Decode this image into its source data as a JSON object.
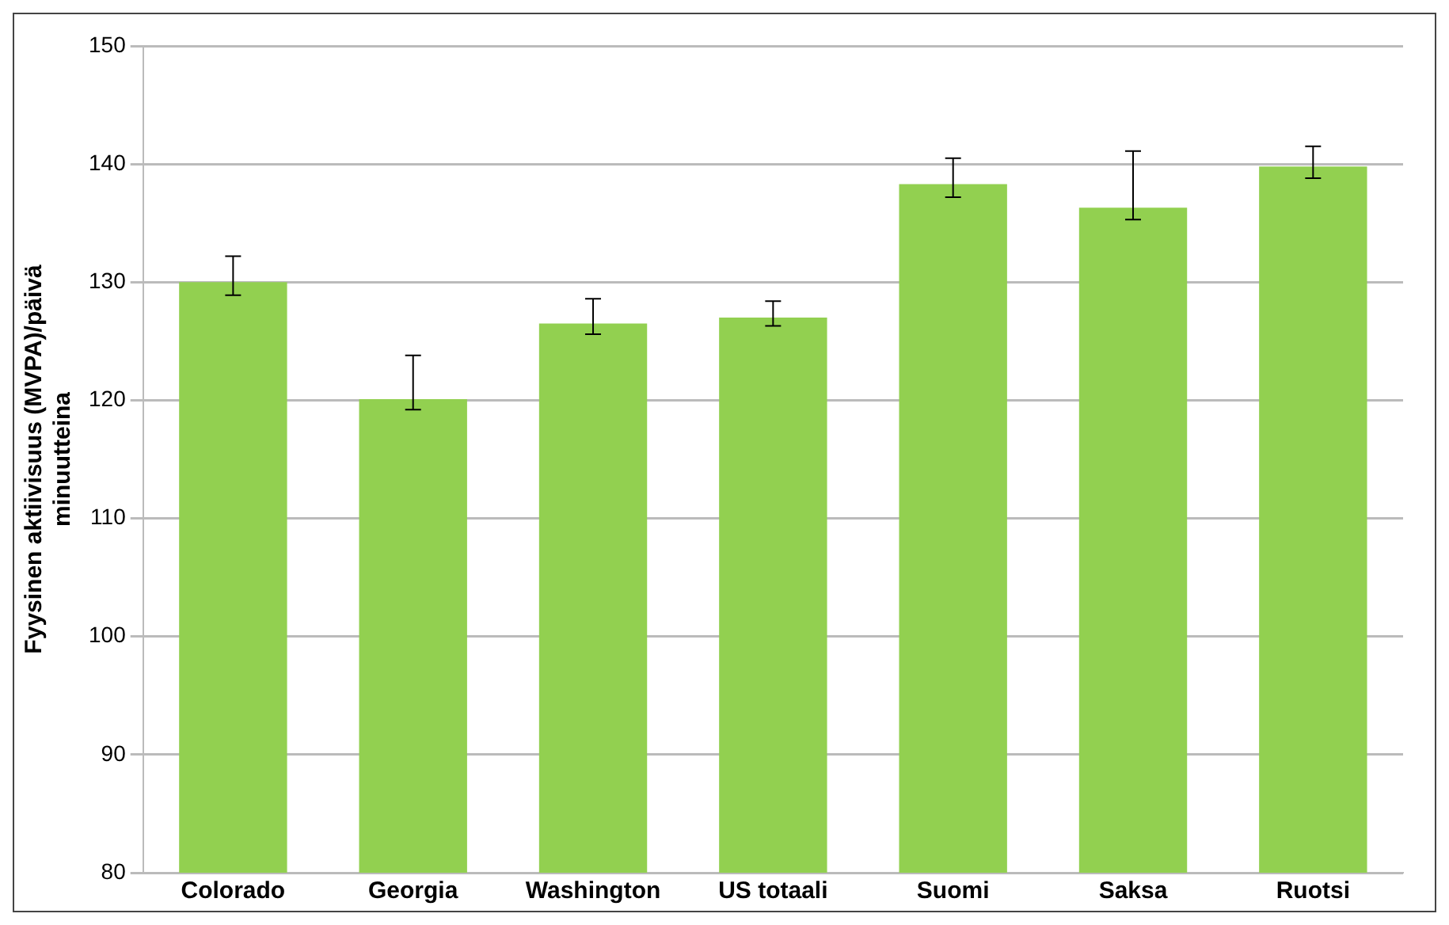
{
  "chart_data": {
    "type": "bar",
    "ylabel": "Fyysinen aktiivisuus (MVPA)/päivä minuutteina",
    "categories": [
      "Colorado",
      "Georgia",
      "Washington",
      "US totaali",
      "Suomi",
      "Saksa",
      "Ruotsi"
    ],
    "values": [
      130,
      120.1,
      126.5,
      127,
      138.3,
      136.3,
      139.8
    ],
    "errors": [
      [
        128.9,
        132.2
      ],
      [
        119.2,
        123.8
      ],
      [
        125.6,
        128.6
      ],
      [
        126.3,
        128.4
      ],
      [
        137.2,
        140.5
      ],
      [
        135.3,
        141.1
      ],
      [
        138.8,
        141.5
      ]
    ],
    "color": "#92d050",
    "ylim": [
      80,
      150
    ],
    "yticks": [
      80,
      90,
      100,
      110,
      120,
      130,
      140,
      150
    ],
    "grid": "y"
  }
}
